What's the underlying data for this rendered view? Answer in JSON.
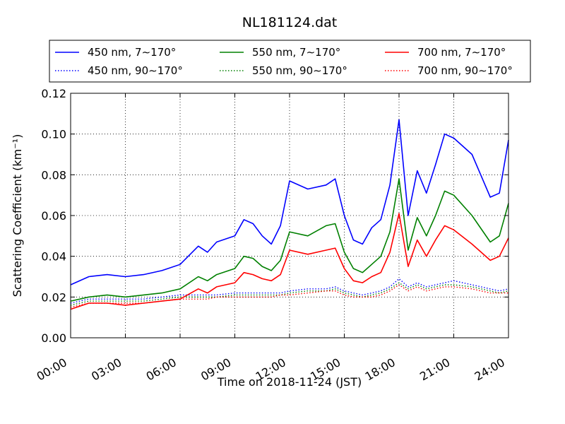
{
  "chart_data": {
    "type": "line",
    "title": "NL181124.dat",
    "xlabel": "Time on 2018-11-24 (JST)",
    "ylabel": "Scattering Coefficient (km⁻¹)",
    "xlim": [
      "00:00",
      "24:00"
    ],
    "ylim": [
      0.0,
      0.12
    ],
    "x_ticks": [
      "00:00",
      "03:00",
      "06:00",
      "09:00",
      "12:00",
      "15:00",
      "18:00",
      "21:00",
      "24:00"
    ],
    "y_ticks": [
      "0.00",
      "0.02",
      "0.04",
      "0.06",
      "0.08",
      "0.10",
      "0.12"
    ],
    "grid": true,
    "legend_position": "top",
    "x": [
      "00:00",
      "01:00",
      "02:00",
      "03:00",
      "04:00",
      "05:00",
      "06:00",
      "07:00",
      "07:30",
      "08:00",
      "09:00",
      "09:30",
      "10:00",
      "10:30",
      "11:00",
      "11:30",
      "12:00",
      "13:00",
      "14:00",
      "14:30",
      "15:00",
      "15:30",
      "16:00",
      "16:30",
      "17:00",
      "17:30",
      "18:00",
      "18:30",
      "19:00",
      "19:30",
      "20:00",
      "20:30",
      "21:00",
      "22:00",
      "23:00",
      "23:30",
      "24:00"
    ],
    "series": [
      {
        "name": "450 nm, 7∼170°",
        "color": "#0000ff",
        "style": "solid",
        "values": [
          0.026,
          0.03,
          0.031,
          0.03,
          0.031,
          0.033,
          0.036,
          0.045,
          0.042,
          0.047,
          0.05,
          0.058,
          0.056,
          0.05,
          0.046,
          0.055,
          0.077,
          0.073,
          0.075,
          0.078,
          0.06,
          0.048,
          0.046,
          0.054,
          0.058,
          0.075,
          0.107,
          0.06,
          0.082,
          0.071,
          0.085,
          0.1,
          0.098,
          0.09,
          0.069,
          0.071,
          0.097
        ]
      },
      {
        "name": "450 nm, 90∼170°",
        "color": "#0000ff",
        "style": "dotted",
        "values": [
          0.017,
          0.019,
          0.019,
          0.019,
          0.019,
          0.02,
          0.021,
          0.021,
          0.021,
          0.021,
          0.022,
          0.022,
          0.022,
          0.022,
          0.022,
          0.022,
          0.023,
          0.024,
          0.024,
          0.025,
          0.023,
          0.022,
          0.021,
          0.022,
          0.023,
          0.025,
          0.029,
          0.025,
          0.027,
          0.025,
          0.026,
          0.027,
          0.028,
          0.026,
          0.024,
          0.023,
          0.024
        ]
      },
      {
        "name": "550 nm, 7∼170°",
        "color": "#008000",
        "style": "solid",
        "values": [
          0.018,
          0.02,
          0.021,
          0.02,
          0.021,
          0.022,
          0.024,
          0.03,
          0.028,
          0.031,
          0.034,
          0.04,
          0.039,
          0.035,
          0.033,
          0.038,
          0.052,
          0.05,
          0.055,
          0.056,
          0.042,
          0.034,
          0.032,
          0.036,
          0.04,
          0.052,
          0.078,
          0.043,
          0.059,
          0.05,
          0.06,
          0.072,
          0.07,
          0.06,
          0.047,
          0.05,
          0.066
        ]
      },
      {
        "name": "550 nm, 90∼170°",
        "color": "#008000",
        "style": "dotted",
        "values": [
          0.016,
          0.018,
          0.018,
          0.018,
          0.018,
          0.019,
          0.02,
          0.02,
          0.02,
          0.02,
          0.021,
          0.021,
          0.021,
          0.021,
          0.021,
          0.021,
          0.022,
          0.023,
          0.023,
          0.024,
          0.022,
          0.021,
          0.02,
          0.021,
          0.022,
          0.024,
          0.027,
          0.024,
          0.026,
          0.024,
          0.025,
          0.026,
          0.026,
          0.025,
          0.023,
          0.022,
          0.023
        ]
      },
      {
        "name": "700 nm, 7∼170°",
        "color": "#ff0000",
        "style": "solid",
        "values": [
          0.014,
          0.017,
          0.017,
          0.016,
          0.017,
          0.018,
          0.019,
          0.024,
          0.022,
          0.025,
          0.027,
          0.032,
          0.031,
          0.029,
          0.028,
          0.031,
          0.043,
          0.041,
          0.043,
          0.044,
          0.034,
          0.028,
          0.027,
          0.03,
          0.032,
          0.042,
          0.061,
          0.035,
          0.048,
          0.04,
          0.048,
          0.055,
          0.053,
          0.046,
          0.038,
          0.04,
          0.049
        ]
      },
      {
        "name": "700 nm, 90∼170°",
        "color": "#ff0000",
        "style": "dotted",
        "values": [
          0.015,
          0.017,
          0.017,
          0.017,
          0.017,
          0.018,
          0.019,
          0.019,
          0.019,
          0.02,
          0.02,
          0.02,
          0.02,
          0.02,
          0.02,
          0.021,
          0.021,
          0.022,
          0.023,
          0.023,
          0.021,
          0.02,
          0.02,
          0.02,
          0.021,
          0.023,
          0.026,
          0.023,
          0.025,
          0.023,
          0.024,
          0.025,
          0.025,
          0.024,
          0.022,
          0.022,
          0.022
        ]
      }
    ]
  }
}
